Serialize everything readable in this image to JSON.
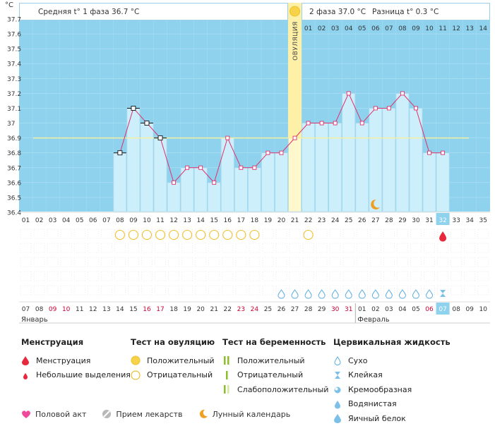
{
  "chart_data": {
    "type": "line",
    "unit_label": "°C",
    "header": {
      "phase1_label": "Средняя t° 1 фаза",
      "phase1_value": "36.7 °C",
      "phase2_label": "2 фаза",
      "phase2_value": "37.0 °C",
      "diff_label": "Разница t°",
      "diff_value": "0.3 °C"
    },
    "ovulation_label": "ОВУЛЯЦИЯ",
    "ovulation_day": 21,
    "y_ticks": [
      "37.7",
      "37.6",
      "37.5",
      "37.4",
      "37.3",
      "37.2",
      "37.1",
      "37",
      "36.9",
      "36.8",
      "36.7",
      "36.6",
      "36.5",
      "36.4"
    ],
    "ylim": [
      36.4,
      37.7
    ],
    "coverline": 36.9,
    "cycle_days": [
      "01",
      "02",
      "03",
      "04",
      "05",
      "06",
      "07",
      "08",
      "09",
      "10",
      "11",
      "12",
      "13",
      "14",
      "15",
      "16",
      "17",
      "18",
      "19",
      "20",
      "21",
      "22",
      "23",
      "24",
      "25",
      "26",
      "27",
      "28",
      "29",
      "30",
      "31",
      "32",
      "33",
      "34",
      "35"
    ],
    "current_day": 32,
    "post_ovulation_days": [
      "01",
      "02",
      "03",
      "04",
      "05",
      "06",
      "07",
      "08",
      "09",
      "10",
      "11",
      "12",
      "13",
      "14"
    ],
    "temperatures": [
      null,
      null,
      null,
      null,
      null,
      null,
      null,
      36.8,
      37.1,
      37.0,
      36.9,
      36.6,
      36.7,
      36.7,
      36.6,
      36.9,
      36.7,
      36.7,
      36.8,
      36.8,
      36.9,
      37.0,
      37.0,
      37.0,
      37.2,
      37.0,
      37.1,
      37.1,
      37.2,
      37.1,
      36.8,
      36.8,
      null,
      null,
      null
    ],
    "open_markers": [
      8,
      9,
      10,
      11
    ],
    "ovulation_test_negative_days": [
      8,
      9,
      10,
      11,
      12,
      13,
      14,
      15,
      16,
      17,
      18,
      22
    ],
    "fluid_dry_days": [
      20,
      21,
      22,
      23,
      24,
      25,
      26,
      27,
      28,
      29,
      30,
      31
    ],
    "fluid_sticky_days": [
      32
    ],
    "menstruation_days": [
      32
    ],
    "moon_day": 27,
    "dates": [
      {
        "d": "07",
        "w": false
      },
      {
        "d": "08",
        "w": false
      },
      {
        "d": "09",
        "w": true
      },
      {
        "d": "10",
        "w": true
      },
      {
        "d": "11",
        "w": false
      },
      {
        "d": "12",
        "w": false
      },
      {
        "d": "13",
        "w": false
      },
      {
        "d": "14",
        "w": false
      },
      {
        "d": "15",
        "w": false
      },
      {
        "d": "16",
        "w": true
      },
      {
        "d": "17",
        "w": true
      },
      {
        "d": "18",
        "w": false
      },
      {
        "d": "19",
        "w": false
      },
      {
        "d": "20",
        "w": false
      },
      {
        "d": "21",
        "w": false
      },
      {
        "d": "22",
        "w": false
      },
      {
        "d": "23",
        "w": true
      },
      {
        "d": "24",
        "w": true
      },
      {
        "d": "25",
        "w": false
      },
      {
        "d": "26",
        "w": false
      },
      {
        "d": "27",
        "w": false
      },
      {
        "d": "28",
        "w": false
      },
      {
        "d": "29",
        "w": false
      },
      {
        "d": "30",
        "w": true
      },
      {
        "d": "31",
        "w": true
      },
      {
        "d": "01",
        "w": false
      },
      {
        "d": "02",
        "w": false
      },
      {
        "d": "03",
        "w": false
      },
      {
        "d": "04",
        "w": false
      },
      {
        "d": "05",
        "w": false
      },
      {
        "d": "06",
        "w": true
      },
      {
        "d": "07",
        "w": false
      },
      {
        "d": "08",
        "w": false
      },
      {
        "d": "09",
        "w": false
      },
      {
        "d": "10",
        "w": false
      }
    ],
    "month_labels": [
      "Январь",
      "Февраль"
    ],
    "colors": {
      "sky": "#8ed2ee",
      "bar": "#cdeefb",
      "bar_stroke": "#9fd6ee",
      "line": "#e0306a",
      "ovulation": "#fff0a8",
      "current": "#8ed2ee",
      "coverline": "#f5f0a0",
      "weekend": "#cc0033"
    }
  },
  "legend": {
    "menstruation": {
      "title": "Менструация",
      "items": [
        "Менструация",
        "Небольшие выделения"
      ]
    },
    "ovulation_test": {
      "title": "Тест на овуляцию",
      "items": [
        "Положительный",
        "Отрицательный"
      ]
    },
    "pregnancy_test": {
      "title": "Тест на беременность",
      "items": [
        "Положительный",
        "Отрицательный",
        "Слабоположительный"
      ]
    },
    "cervical_fluid": {
      "title": "Цервикальная жидкость",
      "items": [
        "Сухо",
        "Клейкая",
        "Кремообразная",
        "Водянистая",
        "Яичный белок"
      ]
    },
    "bottom": [
      "Половой акт",
      "Прием лекарств",
      "Лунный календарь"
    ]
  }
}
